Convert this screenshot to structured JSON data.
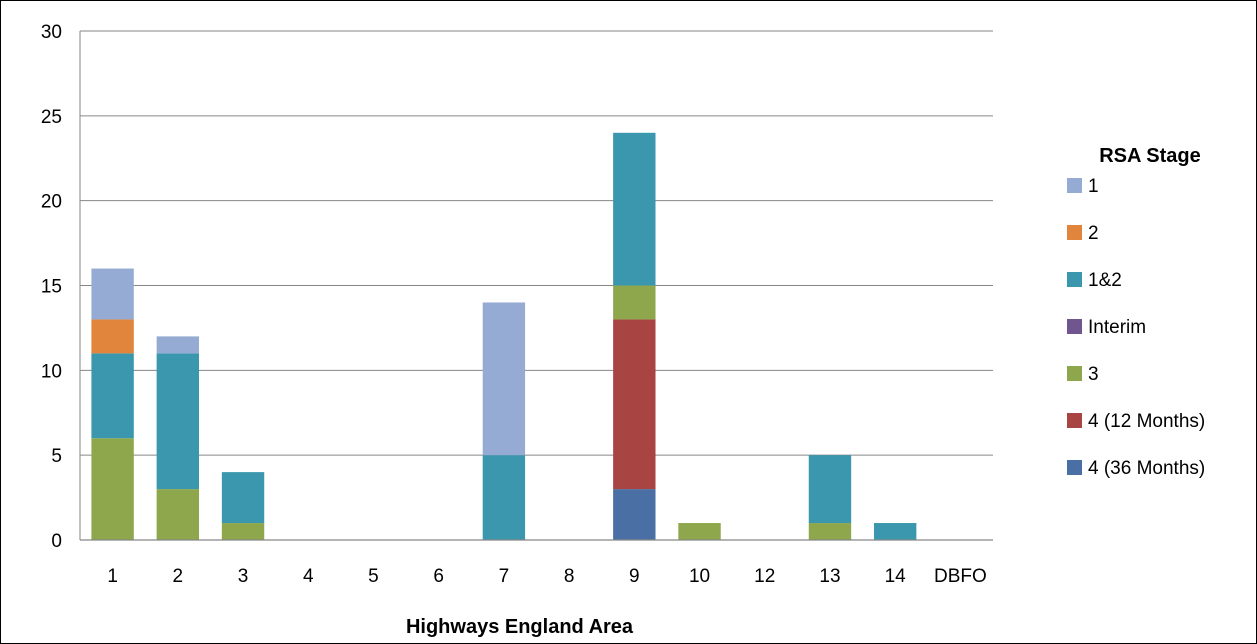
{
  "chart_data": {
    "type": "bar",
    "stacked": true,
    "title": "",
    "xlabel": "Highways England Area",
    "ylabel": "",
    "ylim": [
      0,
      30
    ],
    "yticks": [
      0,
      5,
      10,
      15,
      20,
      25,
      30
    ],
    "grid": true,
    "legend_position": "right",
    "legend_title": "RSA Stage",
    "categories": [
      "1",
      "2",
      "3",
      "4",
      "5",
      "6",
      "7",
      "8",
      "9",
      "10",
      "12",
      "13",
      "14",
      "DBFO"
    ],
    "series": [
      {
        "name": "4 (36 Months)",
        "color": "#4a6fa5",
        "values": [
          0,
          0,
          0,
          0,
          0,
          0,
          0,
          0,
          3,
          0,
          0,
          0,
          0,
          0
        ]
      },
      {
        "name": "4 (12 Months)",
        "color": "#a84442",
        "values": [
          0,
          0,
          0,
          0,
          0,
          0,
          0,
          0,
          10,
          0,
          0,
          0,
          0,
          0
        ]
      },
      {
        "name": "3",
        "color": "#8ea74d",
        "values": [
          6,
          3,
          1,
          0,
          0,
          0,
          0,
          0,
          2,
          1,
          0,
          1,
          0,
          0
        ]
      },
      {
        "name": "Interim",
        "color": "#70568f",
        "values": [
          0,
          0,
          0,
          0,
          0,
          0,
          0,
          0,
          0,
          0,
          0,
          0,
          0,
          0
        ]
      },
      {
        "name": "1&2",
        "color": "#3b97ae",
        "values": [
          5,
          8,
          3,
          0,
          0,
          0,
          5,
          0,
          9,
          0,
          0,
          4,
          1,
          0
        ]
      },
      {
        "name": "2",
        "color": "#e0853b",
        "values": [
          2,
          0,
          0,
          0,
          0,
          0,
          0,
          0,
          0,
          0,
          0,
          0,
          0,
          0
        ]
      },
      {
        "name": "1",
        "color": "#96abd3",
        "values": [
          3,
          1,
          0,
          0,
          0,
          0,
          9,
          0,
          0,
          0,
          0,
          0,
          0,
          0
        ]
      }
    ],
    "legend_order": [
      "1",
      "2",
      "1&2",
      "Interim",
      "3",
      "4 (12 Months)",
      "4 (36 Months)"
    ]
  }
}
